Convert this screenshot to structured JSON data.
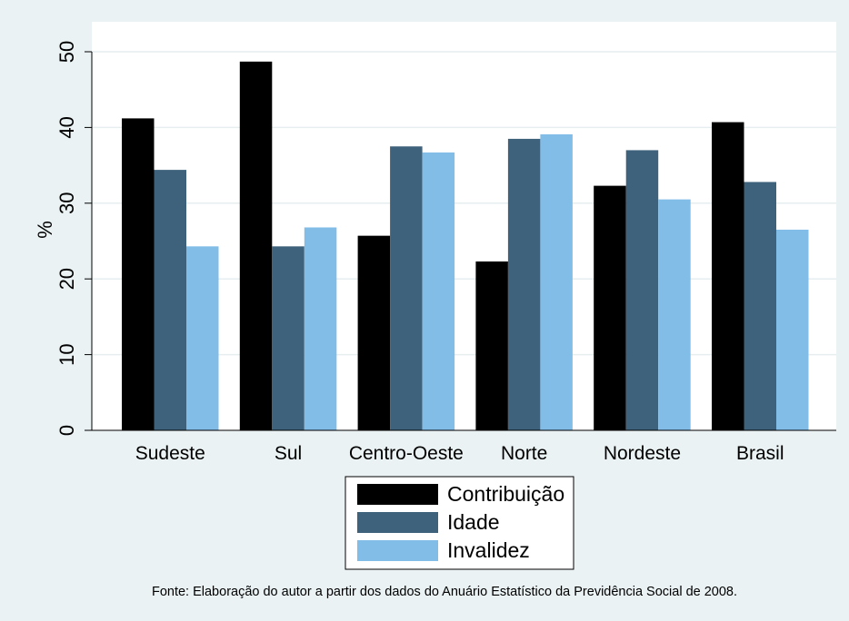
{
  "chart_data": {
    "type": "bar",
    "title": "",
    "xlabel": "",
    "ylabel": "%",
    "ylim": [
      0,
      50
    ],
    "yticks": [
      0,
      10,
      20,
      30,
      40,
      50
    ],
    "grid": true,
    "legend_position": "bottom",
    "categories": [
      "Sudeste",
      "Sul",
      "Centro-Oeste",
      "Norte",
      "Nordeste",
      "Brasil"
    ],
    "series": [
      {
        "name": "Contribuição",
        "color": "#000000",
        "values": [
          41.2,
          48.7,
          25.7,
          22.3,
          32.3,
          40.7
        ]
      },
      {
        "name": "Idade",
        "color": "#3f627c",
        "values": [
          34.4,
          24.3,
          37.5,
          38.5,
          37.0,
          32.8
        ]
      },
      {
        "name": "Invalidez",
        "color": "#82bde8",
        "values": [
          24.3,
          26.8,
          36.7,
          39.1,
          30.5,
          26.5
        ]
      }
    ],
    "source_note": "Fonte: Elaboração do autor a partir dos dados do Anuário Estatístico da Previdência Social de 2008."
  }
}
